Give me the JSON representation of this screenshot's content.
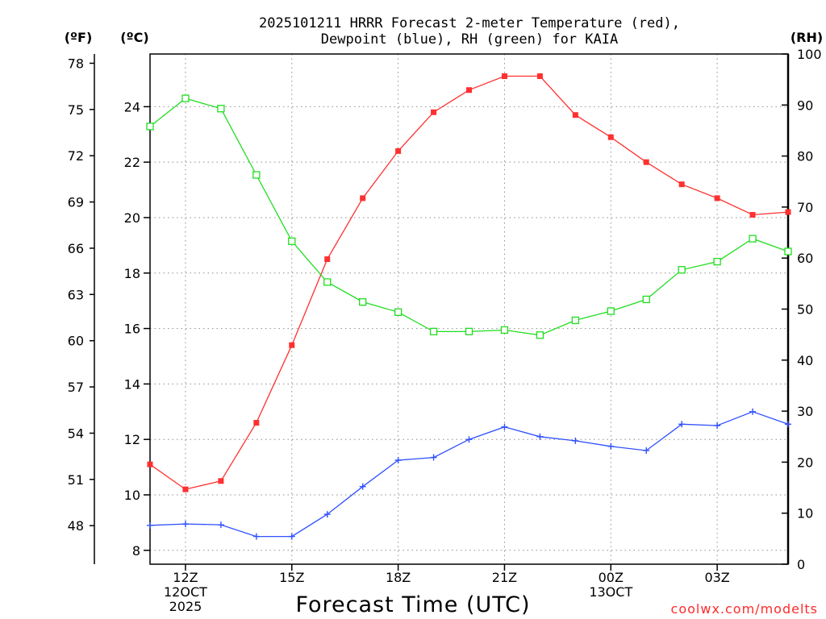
{
  "chart_data": {
    "type": "line",
    "title": [
      "2025101211 HRRR Forecast 2-meter Temperature (red),",
      "Dewpoint (blue), RH (green) for KAIA"
    ],
    "xlabel": "Forecast Time (UTC)",
    "credit": "coolwx.com/modelts",
    "units": {
      "fahrenheit": "(ºF)",
      "celsius": "(ºC)",
      "rh": "(RH)"
    },
    "x_hours": [
      11,
      12,
      13,
      14,
      15,
      16,
      17,
      18,
      19,
      20,
      21,
      22,
      23,
      24,
      25,
      26,
      27,
      28,
      29
    ],
    "xlim": [
      11,
      29
    ],
    "x_ticks": [
      {
        "x": 12,
        "lines": [
          "12Z",
          "12OCT",
          "2025"
        ]
      },
      {
        "x": 15,
        "lines": [
          "15Z"
        ]
      },
      {
        "x": 18,
        "lines": [
          "18Z"
        ]
      },
      {
        "x": 21,
        "lines": [
          "21Z"
        ]
      },
      {
        "x": 24,
        "lines": [
          "00Z",
          "13OCT"
        ]
      },
      {
        "x": 27,
        "lines": [
          "03Z"
        ]
      }
    ],
    "celsius_axis": {
      "ylim": [
        7.5,
        25.9
      ],
      "ticks": [
        "8",
        "10",
        "12",
        "14",
        "16",
        "18",
        "20",
        "22",
        "24"
      ]
    },
    "fahrenheit_axis": {
      "ylim": [
        45.5,
        78.6
      ],
      "ticks": [
        "48",
        "51",
        "54",
        "57",
        "60",
        "63",
        "66",
        "69",
        "72",
        "75",
        "78"
      ]
    },
    "rh_axis": {
      "ylim": [
        0,
        100
      ],
      "ticks": [
        "0",
        "10",
        "20",
        "30",
        "40",
        "50",
        "60",
        "70",
        "80",
        "90",
        "100"
      ]
    },
    "series": [
      {
        "name": "Temperature",
        "axis": "celsius",
        "color": "#ff3030",
        "marker": "filled-square",
        "values": [
          11.1,
          10.2,
          10.5,
          12.6,
          15.4,
          18.5,
          20.7,
          22.4,
          23.8,
          24.6,
          25.1,
          25.1,
          23.7,
          22.9,
          22.0,
          21.2,
          20.7,
          20.1,
          20.2
        ]
      },
      {
        "name": "Dewpoint",
        "axis": "celsius",
        "color": "#3050ff",
        "marker": "plus",
        "values": [
          8.9,
          8.95,
          8.92,
          8.5,
          8.5,
          9.3,
          10.3,
          11.25,
          11.35,
          12.0,
          12.45,
          12.1,
          11.95,
          11.75,
          11.6,
          12.55,
          12.5,
          13.0,
          12.55
        ]
      },
      {
        "name": "RH",
        "axis": "rh",
        "color": "#20dd20",
        "marker": "open-square",
        "values": [
          85.8,
          91.3,
          89.3,
          76.3,
          63.3,
          55.3,
          51.4,
          49.4,
          45.6,
          45.6,
          45.9,
          44.9,
          47.8,
          49.6,
          51.9,
          57.7,
          59.3,
          63.8,
          61.3
        ]
      }
    ]
  }
}
